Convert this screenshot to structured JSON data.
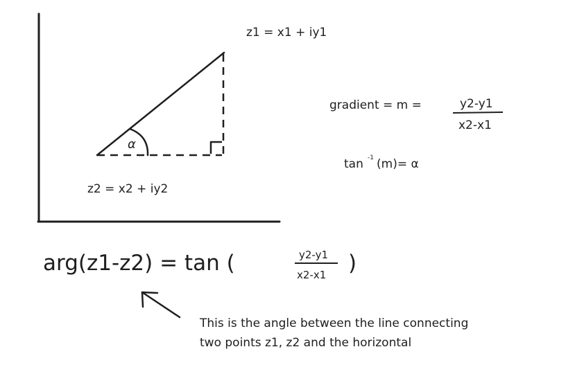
{
  "labels": {
    "z1": "z1 = x1 + iy1",
    "z2": "z2 = x2 + iy2",
    "alpha": "α",
    "gradient_prefix": "gradient = m =",
    "gradient_numerator": "y2-y1",
    "gradient_denominator": "x2-x1",
    "tan_inverse_base": "tan",
    "tan_inverse_exponent": "-1",
    "tan_inverse_rest": "(m)= α"
  },
  "main_formula": {
    "left": "arg(z1-z2) = tan (",
    "numerator": "y2-y1",
    "denominator": "x2-x1",
    "right": ")"
  },
  "annotation": {
    "line1": "This is the angle between the line connecting",
    "line2": "two points z1, z2 and the horizontal"
  },
  "colors": {
    "ink": "#1e1e1e",
    "background": "#ffffff"
  }
}
